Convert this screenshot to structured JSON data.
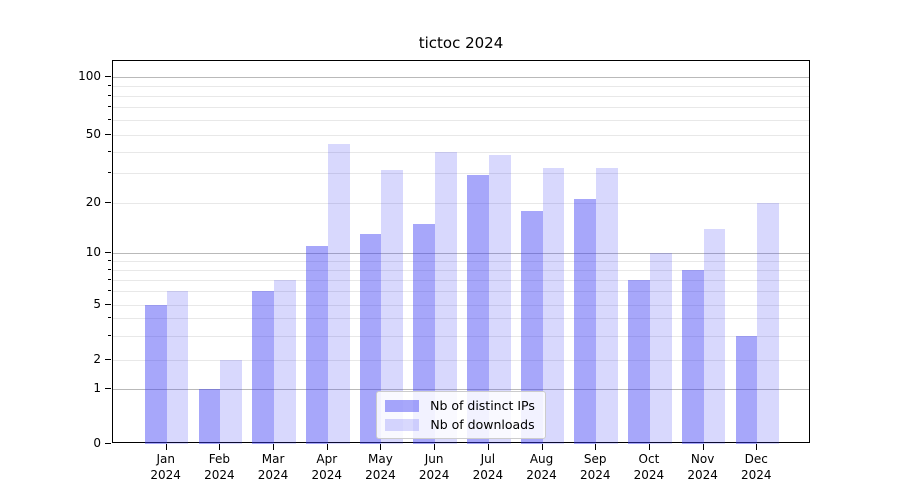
{
  "chart_data": {
    "type": "bar",
    "title": "tictoc 2024",
    "categories": [
      "Jan 2024",
      "Feb 2024",
      "Mar 2024",
      "Apr 2024",
      "May 2024",
      "Jun 2024",
      "Jul 2024",
      "Aug 2024",
      "Sep 2024",
      "Oct 2024",
      "Nov 2024",
      "Dec 2024"
    ],
    "series": [
      {
        "name": "Nb of distinct IPs",
        "color": "rgba(60,60,245,0.45)",
        "values": [
          5,
          1,
          6,
          11,
          13,
          15,
          29,
          18,
          21,
          7,
          8,
          3
        ]
      },
      {
        "name": "Nb of downloads",
        "color": "rgba(60,60,245,0.20)",
        "values": [
          6,
          2,
          7,
          44,
          31,
          40,
          38,
          32,
          32,
          10,
          14,
          20
        ]
      }
    ],
    "xlabel": "",
    "ylabel": "",
    "yscale": "symlog",
    "ylim": [
      0,
      120
    ],
    "yticks": [
      0,
      1,
      2,
      5,
      10,
      20,
      50,
      100
    ],
    "minor_grid_values": [
      2,
      3,
      4,
      5,
      6,
      7,
      8,
      9,
      20,
      30,
      40,
      50,
      60,
      70,
      80,
      90
    ],
    "major_grid_values": [
      1,
      10,
      100
    ],
    "grid": "both",
    "legend_position": "lower center",
    "colors": {
      "bar_dark": "rgba(60,60,245,0.45)",
      "bar_light": "rgba(60,60,245,0.20)",
      "major_grid": "#b9b9b9",
      "minor_grid": "#e8e8e8",
      "spine": "#000000",
      "legend_border": "#cccccc"
    }
  }
}
